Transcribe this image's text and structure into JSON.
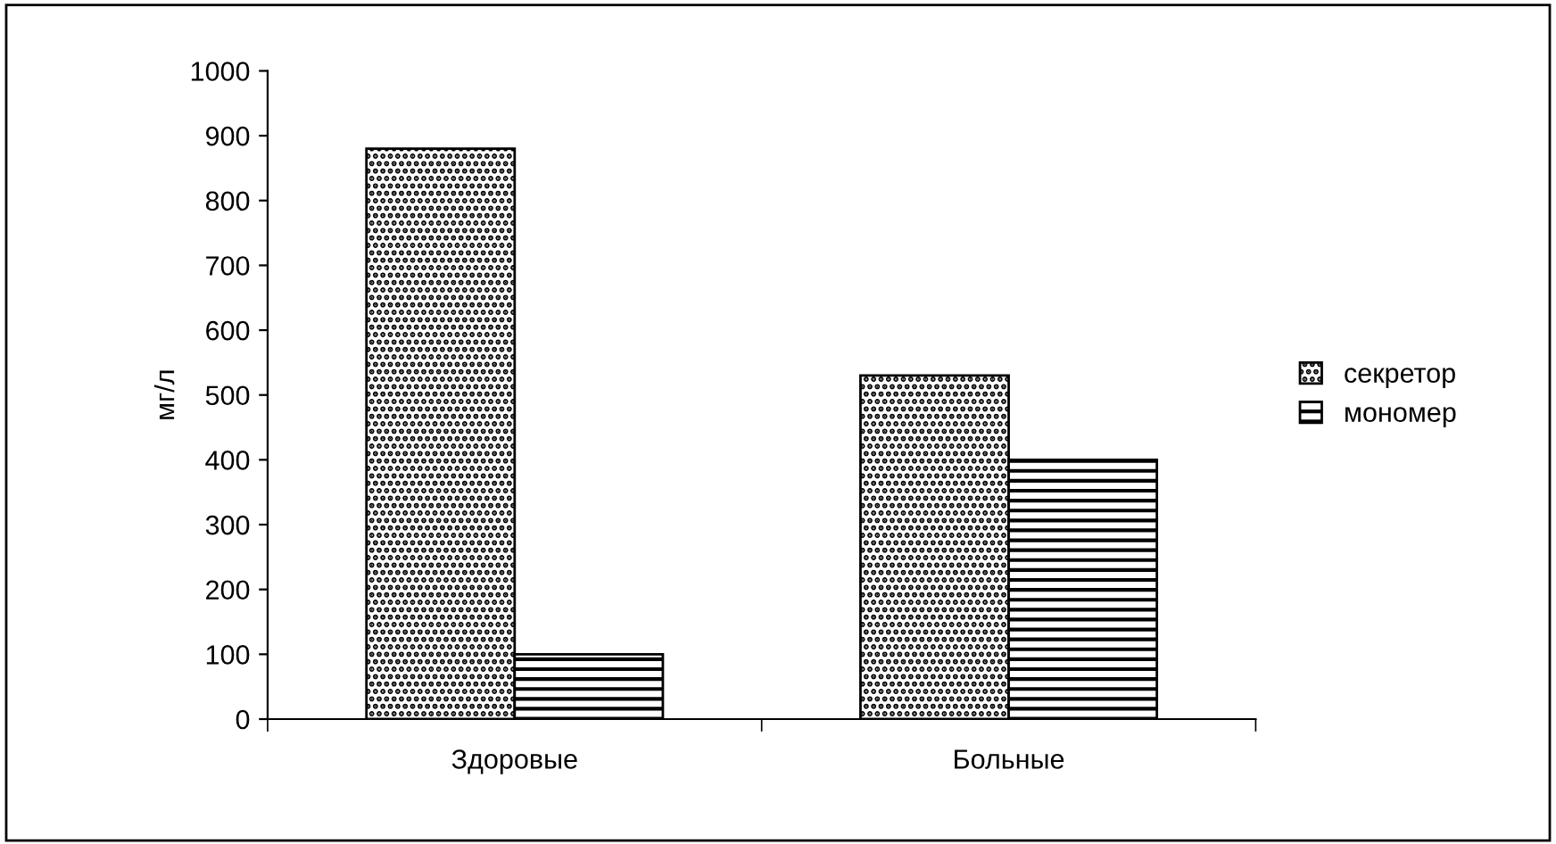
{
  "chart_data": {
    "type": "bar",
    "ylabel": "мг/л",
    "categories": [
      "Здоровые",
      "Больные"
    ],
    "series": [
      {
        "name": "секретор",
        "color": "#000000",
        "values": [
          880,
          530
        ]
      },
      {
        "name": "мономер",
        "color": "#000000",
        "values": [
          100,
          400
        ]
      }
    ],
    "ylim": [
      0,
      1000
    ],
    "yticks": [
      0,
      100,
      200,
      300,
      400,
      500,
      600,
      700,
      800,
      900,
      1000
    ],
    "grid": false,
    "legend": "right"
  }
}
